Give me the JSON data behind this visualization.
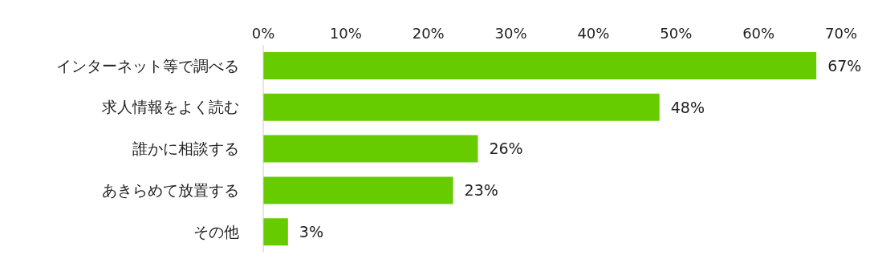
{
  "chart_data": {
    "type": "bar",
    "orientation": "horizontal",
    "categories": [
      "インターネット等で調べる",
      "求人情報をよく読む",
      "誰かに相談する",
      "あきらめて放置する",
      "その他"
    ],
    "values": [
      67,
      48,
      26,
      23,
      3
    ],
    "value_labels": [
      "67%",
      "48%",
      "26%",
      "23%",
      "3%"
    ],
    "color": "#66cc00",
    "xlim": [
      0,
      70
    ],
    "xticks": [
      {
        "value": 0,
        "label": "0%"
      },
      {
        "value": 10,
        "label": "10%"
      },
      {
        "value": 20,
        "label": "20%"
      },
      {
        "value": 30,
        "label": "30%"
      },
      {
        "value": 40,
        "label": "40%"
      },
      {
        "value": 50,
        "label": "50%"
      },
      {
        "value": 60,
        "label": "60%"
      },
      {
        "value": 70,
        "label": "70%"
      }
    ],
    "grid": false,
    "legend": false
  }
}
